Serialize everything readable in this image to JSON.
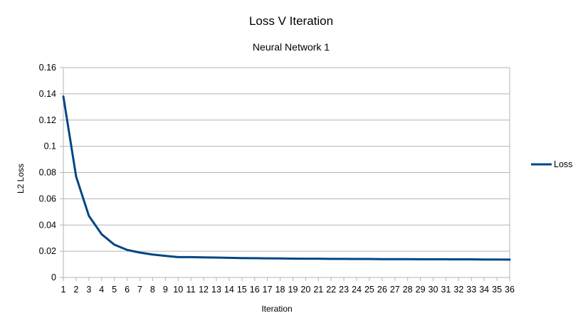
{
  "chart_data": {
    "type": "line",
    "title": "Loss V Iteration",
    "subtitle": "Neural Network 1",
    "xlabel": "Iteration",
    "ylabel": "L2 Loss",
    "ylim": [
      0,
      0.16
    ],
    "yticks": [
      "0",
      "0.02",
      "0.04",
      "0.06",
      "0.08",
      "0.1",
      "0.12",
      "0.14",
      "0.16"
    ],
    "yticks_values": [
      0,
      0.02,
      0.04,
      0.06,
      0.08,
      0.1,
      0.12,
      0.14,
      0.16
    ],
    "categories": [
      "1",
      "2",
      "3",
      "4",
      "5",
      "6",
      "7",
      "8",
      "9",
      "10",
      "11",
      "12",
      "13",
      "14",
      "15",
      "16",
      "17",
      "18",
      "19",
      "20",
      "21",
      "22",
      "23",
      "24",
      "25",
      "26",
      "27",
      "28",
      "29",
      "30",
      "31",
      "32",
      "33",
      "34",
      "35",
      "36"
    ],
    "grid": true,
    "legend_position": "right",
    "series": [
      {
        "name": "Loss",
        "color": "#004586",
        "values": [
          0.138,
          0.077,
          0.047,
          0.033,
          0.025,
          0.021,
          0.019,
          0.0175,
          0.0165,
          0.0155,
          0.0155,
          0.0153,
          0.0152,
          0.015,
          0.0148,
          0.0147,
          0.0146,
          0.0145,
          0.0144,
          0.0143,
          0.0143,
          0.0142,
          0.0142,
          0.0141,
          0.0141,
          0.014,
          0.014,
          0.014,
          0.0139,
          0.0139,
          0.0139,
          0.0138,
          0.0138,
          0.0137,
          0.0137,
          0.0136
        ]
      }
    ]
  }
}
